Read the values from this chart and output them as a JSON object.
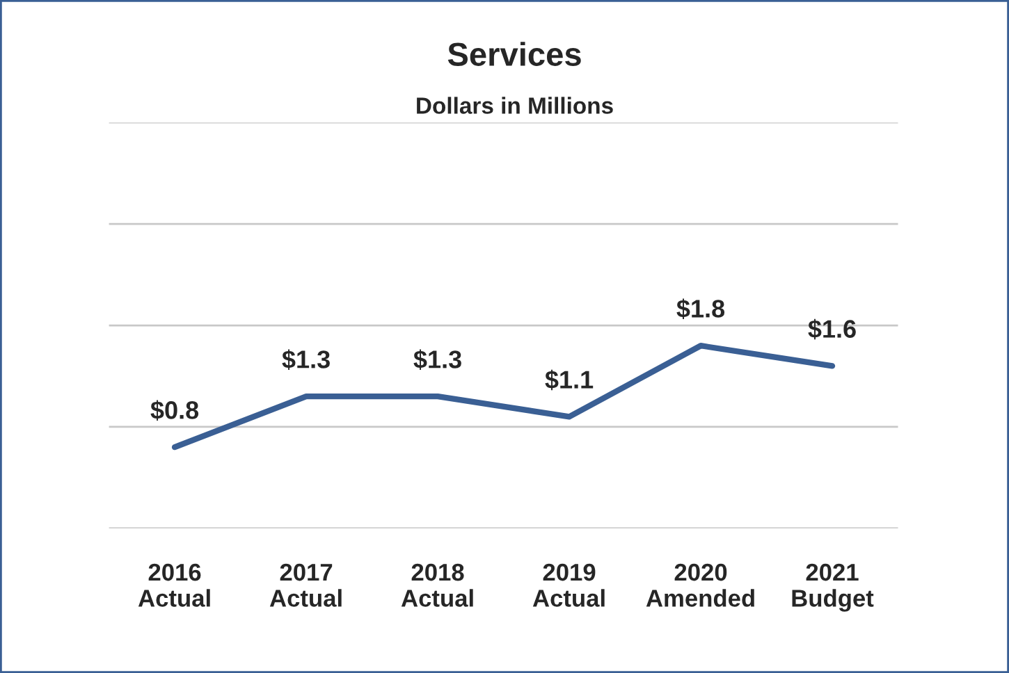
{
  "chart_data": {
    "type": "line",
    "title": "Services",
    "subtitle": "Dollars in Millions",
    "categories": [
      "2016\nActual",
      "2017\nActual",
      "2018\nActual",
      "2019\nActual",
      "2020\nAmended",
      "2021\nBudget"
    ],
    "series": [
      {
        "color": "#3a5f94",
        "values": [
          0.8,
          1.3,
          1.3,
          1.1,
          1.8,
          1.6
        ],
        "value_labels": [
          "$0.8",
          "$1.3",
          "$1.3",
          "$1.1",
          "$1.8",
          "$1.6"
        ]
      }
    ],
    "ylim": [
      0,
      4
    ],
    "yticks": [
      {
        "value": 0,
        "label": null
      },
      {
        "value": 1,
        "label": null
      },
      {
        "value": 2,
        "label": null
      },
      {
        "value": 3,
        "label": null
      },
      {
        "value": 4,
        "label": null
      }
    ],
    "grid": "y",
    "tick_labels": "x",
    "marker": "none",
    "line_style": "solid"
  }
}
